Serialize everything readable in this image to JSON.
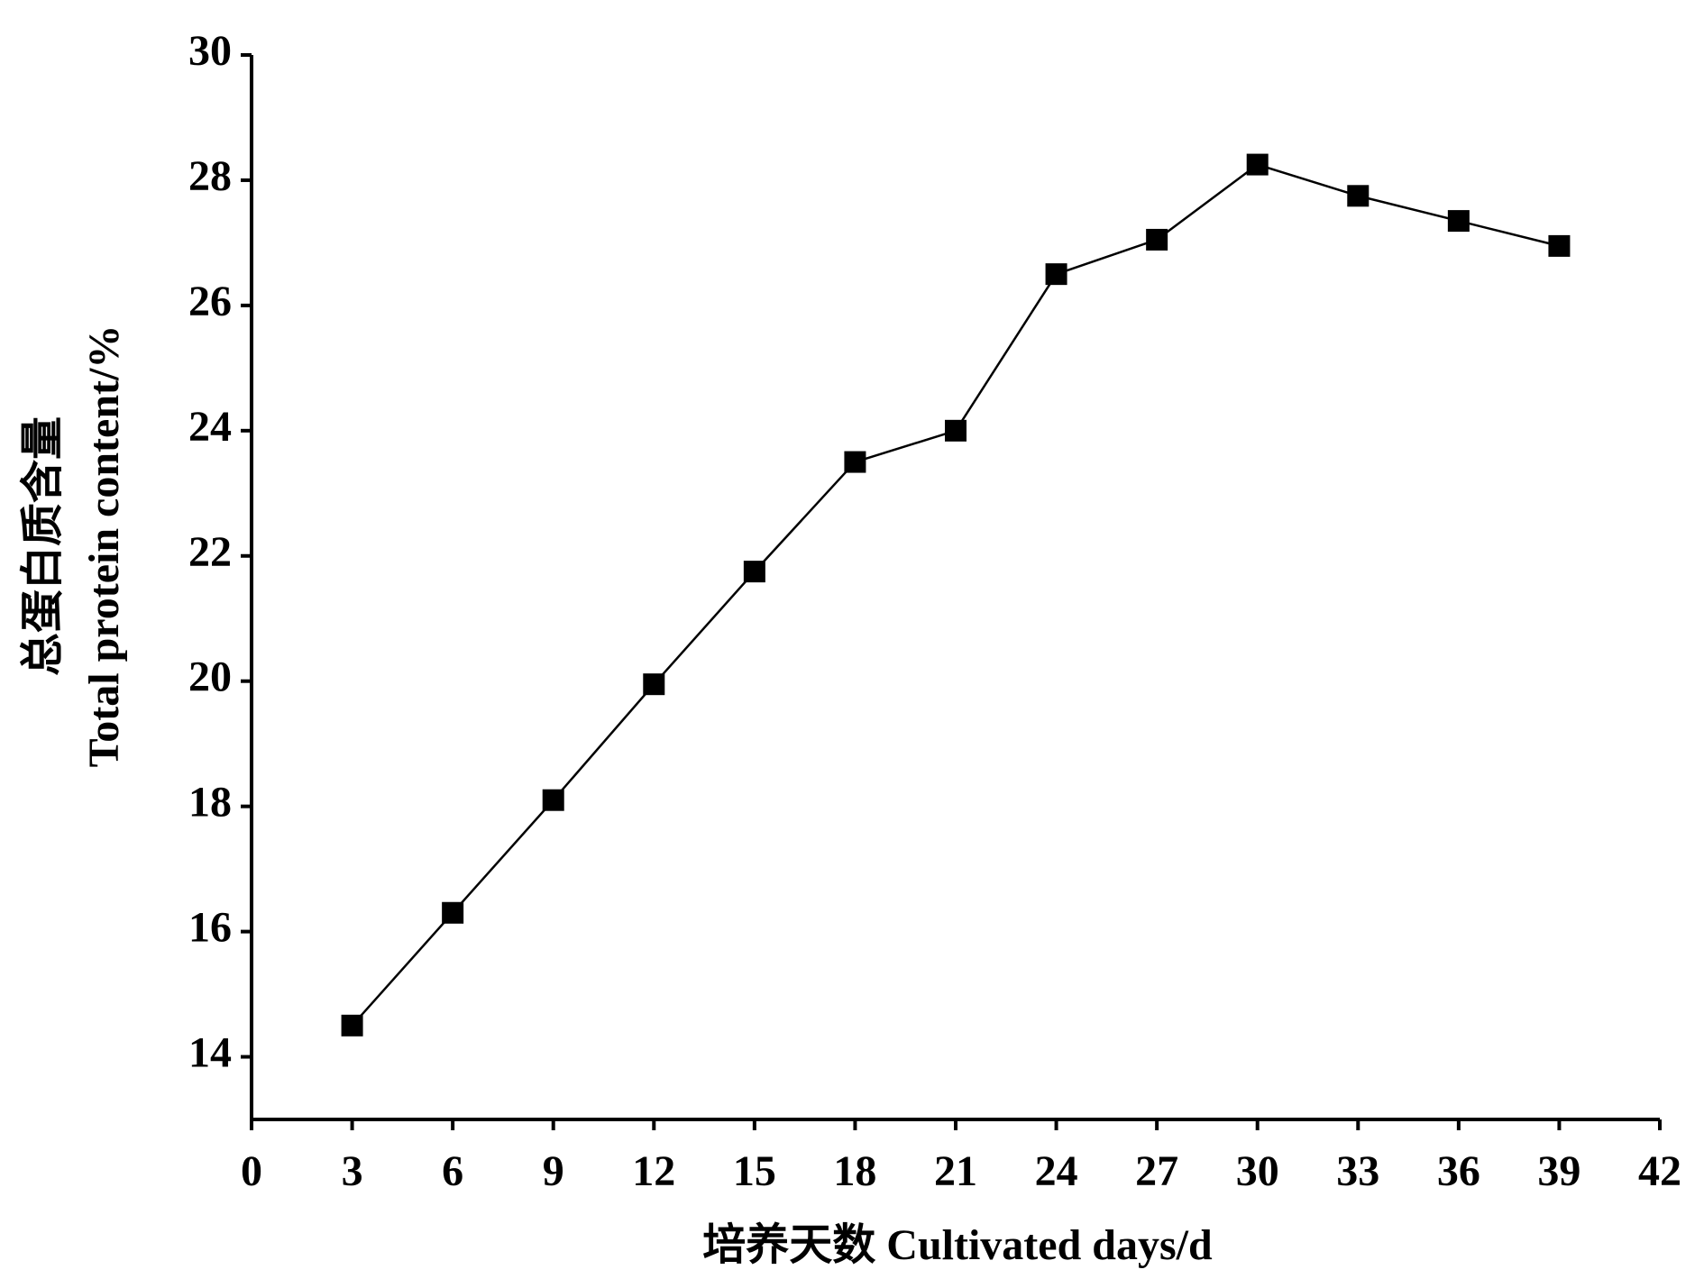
{
  "chart_data": {
    "type": "line",
    "ylabel": [
      "总蛋白质含量",
      "Total protein content/%"
    ],
    "xlabel": "培养天数 Cultivated days/d",
    "x": [
      3,
      6,
      9,
      12,
      15,
      18,
      21,
      24,
      27,
      30,
      33,
      36,
      39
    ],
    "series": [
      {
        "color": "#000000",
        "values": [
          14.5,
          16.3,
          18.1,
          19.95,
          21.75,
          23.5,
          24.0,
          26.5,
          27.05,
          28.25,
          27.75,
          27.35,
          26.95
        ]
      }
    ],
    "xlim": [
      0,
      42
    ],
    "xticks": [
      0,
      3,
      6,
      9,
      12,
      15,
      18,
      21,
      24,
      27,
      30,
      33,
      36,
      39,
      42
    ],
    "ylim": [
      13,
      30
    ],
    "yticks": [
      14,
      16,
      18,
      20,
      22,
      24,
      26,
      28,
      30
    ],
    "grid": false,
    "marker": "square"
  }
}
